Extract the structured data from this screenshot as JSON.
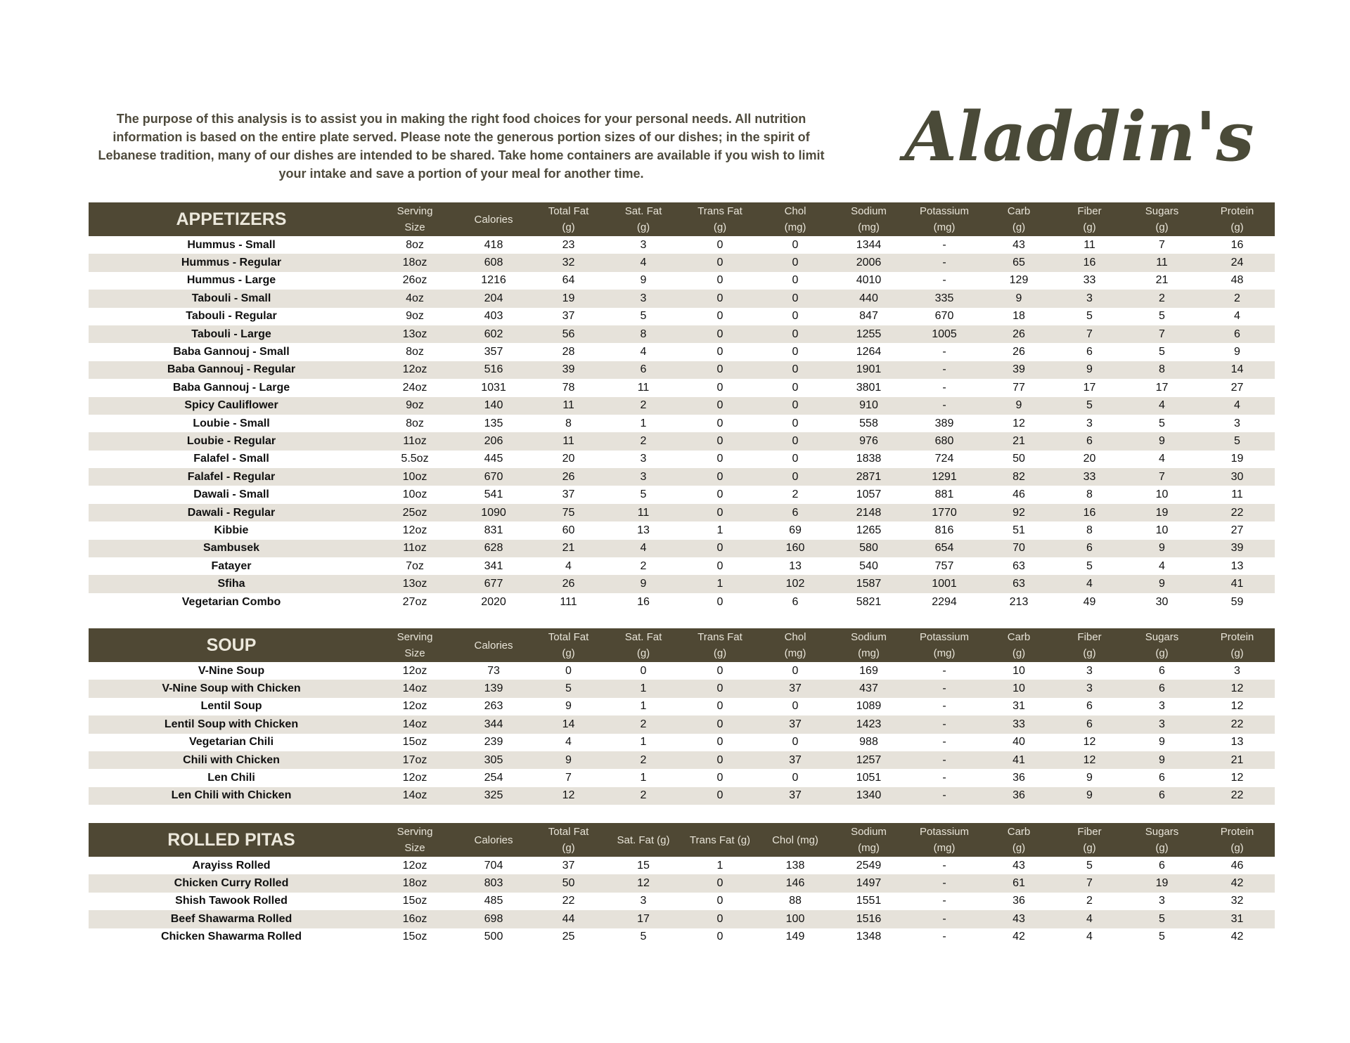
{
  "intro": "The purpose of this analysis is to assist you in making the right food choices for your personal needs. All nutrition information is based on the entire plate served. Please note the generous portion sizes of our dishes; in the spirit of Lebanese tradition, many of our dishes are intended to be shared. Take home containers are available if you wish to limit your intake and save a portion of your meal for another time.",
  "logo_text": "Aladdin's",
  "colors": {
    "header": "#4f4834",
    "alt_row": "#e6e2da",
    "logo": "#4a4a38"
  },
  "sections": [
    {
      "title": "APPETIZERS",
      "columns": [
        [
          "Serving",
          "Size"
        ],
        [
          "Calories",
          ""
        ],
        [
          "Total Fat",
          "(g)"
        ],
        [
          "Sat. Fat",
          "(g)"
        ],
        [
          "Trans Fat",
          "(g)"
        ],
        [
          "Chol",
          "(mg)"
        ],
        [
          "Sodium",
          "(mg)"
        ],
        [
          "Potassium",
          "(mg)"
        ],
        [
          "Carb",
          "(g)"
        ],
        [
          "Fiber",
          "(g)"
        ],
        [
          "Sugars",
          "(g)"
        ],
        [
          "Protein",
          "(g)"
        ]
      ],
      "rows": [
        [
          "Hummus - Small",
          "8oz",
          "418",
          "23",
          "3",
          "0",
          "0",
          "1344",
          "-",
          "43",
          "11",
          "7",
          "16"
        ],
        [
          "Hummus - Regular",
          "18oz",
          "608",
          "32",
          "4",
          "0",
          "0",
          "2006",
          "-",
          "65",
          "16",
          "11",
          "24"
        ],
        [
          "Hummus - Large",
          "26oz",
          "1216",
          "64",
          "9",
          "0",
          "0",
          "4010",
          "-",
          "129",
          "33",
          "21",
          "48"
        ],
        [
          "Tabouli - Small",
          "4oz",
          "204",
          "19",
          "3",
          "0",
          "0",
          "440",
          "335",
          "9",
          "3",
          "2",
          "2"
        ],
        [
          "Tabouli - Regular",
          "9oz",
          "403",
          "37",
          "5",
          "0",
          "0",
          "847",
          "670",
          "18",
          "5",
          "5",
          "4"
        ],
        [
          "Tabouli - Large",
          "13oz",
          "602",
          "56",
          "8",
          "0",
          "0",
          "1255",
          "1005",
          "26",
          "7",
          "7",
          "6"
        ],
        [
          "Baba Gannouj - Small",
          "8oz",
          "357",
          "28",
          "4",
          "0",
          "0",
          "1264",
          "-",
          "26",
          "6",
          "5",
          "9"
        ],
        [
          "Baba Gannouj - Regular",
          "12oz",
          "516",
          "39",
          "6",
          "0",
          "0",
          "1901",
          "-",
          "39",
          "9",
          "8",
          "14"
        ],
        [
          "Baba Gannouj - Large",
          "24oz",
          "1031",
          "78",
          "11",
          "0",
          "0",
          "3801",
          "-",
          "77",
          "17",
          "17",
          "27"
        ],
        [
          "Spicy Cauliflower",
          "9oz",
          "140",
          "11",
          "2",
          "0",
          "0",
          "910",
          "-",
          "9",
          "5",
          "4",
          "4"
        ],
        [
          "Loubie - Small",
          "8oz",
          "135",
          "8",
          "1",
          "0",
          "0",
          "558",
          "389",
          "12",
          "3",
          "5",
          "3"
        ],
        [
          "Loubie - Regular",
          "11oz",
          "206",
          "11",
          "2",
          "0",
          "0",
          "976",
          "680",
          "21",
          "6",
          "9",
          "5"
        ],
        [
          "Falafel - Small",
          "5.5oz",
          "445",
          "20",
          "3",
          "0",
          "0",
          "1838",
          "724",
          "50",
          "20",
          "4",
          "19"
        ],
        [
          "Falafel - Regular",
          "10oz",
          "670",
          "26",
          "3",
          "0",
          "0",
          "2871",
          "1291",
          "82",
          "33",
          "7",
          "30"
        ],
        [
          "Dawali - Small",
          "10oz",
          "541",
          "37",
          "5",
          "0",
          "2",
          "1057",
          "881",
          "46",
          "8",
          "10",
          "11"
        ],
        [
          "Dawali - Regular",
          "25oz",
          "1090",
          "75",
          "11",
          "0",
          "6",
          "2148",
          "1770",
          "92",
          "16",
          "19",
          "22"
        ],
        [
          "Kibbie",
          "12oz",
          "831",
          "60",
          "13",
          "1",
          "69",
          "1265",
          "816",
          "51",
          "8",
          "10",
          "27"
        ],
        [
          "Sambusek",
          "11oz",
          "628",
          "21",
          "4",
          "0",
          "160",
          "580",
          "654",
          "70",
          "6",
          "9",
          "39"
        ],
        [
          "Fatayer",
          "7oz",
          "341",
          "4",
          "2",
          "0",
          "13",
          "540",
          "757",
          "63",
          "5",
          "4",
          "13"
        ],
        [
          "Sfiha",
          "13oz",
          "677",
          "26",
          "9",
          "1",
          "102",
          "1587",
          "1001",
          "63",
          "4",
          "9",
          "41"
        ],
        [
          "Vegetarian Combo",
          "27oz",
          "2020",
          "111",
          "16",
          "0",
          "6",
          "5821",
          "2294",
          "213",
          "49",
          "30",
          "59"
        ]
      ]
    },
    {
      "title": "SOUP",
      "columns": [
        [
          "Serving",
          "Size"
        ],
        [
          "Calories",
          ""
        ],
        [
          "Total Fat",
          "(g)"
        ],
        [
          "Sat. Fat",
          "(g)"
        ],
        [
          "Trans Fat",
          "(g)"
        ],
        [
          "Chol",
          "(mg)"
        ],
        [
          "Sodium",
          "(mg)"
        ],
        [
          "Potassium",
          "(mg)"
        ],
        [
          "Carb",
          "(g)"
        ],
        [
          "Fiber",
          "(g)"
        ],
        [
          "Sugars",
          "(g)"
        ],
        [
          "Protein",
          "(g)"
        ]
      ],
      "rows": [
        [
          "V-Nine Soup",
          "12oz",
          "73",
          "0",
          "0",
          "0",
          "0",
          "169",
          "-",
          "10",
          "3",
          "6",
          "3"
        ],
        [
          "V-Nine Soup with Chicken",
          "14oz",
          "139",
          "5",
          "1",
          "0",
          "37",
          "437",
          "-",
          "10",
          "3",
          "6",
          "12"
        ],
        [
          "Lentil Soup",
          "12oz",
          "263",
          "9",
          "1",
          "0",
          "0",
          "1089",
          "-",
          "31",
          "6",
          "3",
          "12"
        ],
        [
          "Lentil Soup with Chicken",
          "14oz",
          "344",
          "14",
          "2",
          "0",
          "37",
          "1423",
          "-",
          "33",
          "6",
          "3",
          "22"
        ],
        [
          "Vegetarian Chili",
          "15oz",
          "239",
          "4",
          "1",
          "0",
          "0",
          "988",
          "-",
          "40",
          "12",
          "9",
          "13"
        ],
        [
          "Chili with Chicken",
          "17oz",
          "305",
          "9",
          "2",
          "0",
          "37",
          "1257",
          "-",
          "41",
          "12",
          "9",
          "21"
        ],
        [
          "Len Chili",
          "12oz",
          "254",
          "7",
          "1",
          "0",
          "0",
          "1051",
          "-",
          "36",
          "9",
          "6",
          "12"
        ],
        [
          "Len Chili with Chicken",
          "14oz",
          "325",
          "12",
          "2",
          "0",
          "37",
          "1340",
          "-",
          "36",
          "9",
          "6",
          "22"
        ]
      ]
    },
    {
      "title": "ROLLED PITAS",
      "columns": [
        [
          "Serving",
          "Size"
        ],
        [
          "Calories",
          ""
        ],
        [
          "Total Fat",
          "(g)"
        ],
        [
          "Sat. Fat (g)",
          ""
        ],
        [
          "Trans Fat (g)",
          ""
        ],
        [
          "Chol (mg)",
          ""
        ],
        [
          "Sodium",
          "(mg)"
        ],
        [
          "Potassium",
          "(mg)"
        ],
        [
          "Carb",
          "(g)"
        ],
        [
          "Fiber",
          "(g)"
        ],
        [
          "Sugars",
          "(g)"
        ],
        [
          "Protein",
          "(g)"
        ]
      ],
      "rows": [
        [
          "Arayiss Rolled",
          "12oz",
          "704",
          "37",
          "15",
          "1",
          "138",
          "2549",
          "-",
          "43",
          "5",
          "6",
          "46"
        ],
        [
          "Chicken Curry Rolled",
          "18oz",
          "803",
          "50",
          "12",
          "0",
          "146",
          "1497",
          "-",
          "61",
          "7",
          "19",
          "42"
        ],
        [
          "Shish Tawook Rolled",
          "15oz",
          "485",
          "22",
          "3",
          "0",
          "88",
          "1551",
          "-",
          "36",
          "2",
          "3",
          "32"
        ],
        [
          "Beef Shawarma Rolled",
          "16oz",
          "698",
          "44",
          "17",
          "0",
          "100",
          "1516",
          "-",
          "43",
          "4",
          "5",
          "31"
        ],
        [
          "Chicken Shawarma Rolled",
          "15oz",
          "500",
          "25",
          "5",
          "0",
          "149",
          "1348",
          "-",
          "42",
          "4",
          "5",
          "42"
        ]
      ]
    }
  ]
}
